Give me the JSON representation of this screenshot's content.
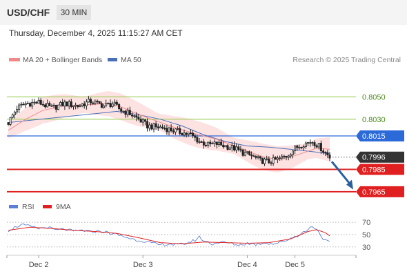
{
  "header": {
    "pair": "USD/CHF",
    "timeframe": "30 MIN"
  },
  "timestamp": "Thursday, December 4, 2025 11:15:27 AM CET",
  "colors": {
    "candle": "#222222",
    "bollinger_fill": "#fde2e2",
    "ma20": "#f08a8a",
    "ma50": "#4a6fb5",
    "green_level": "#8dc63f",
    "blue_level": "#2b6ad8",
    "red_level": "#e02020",
    "current_price": "#333333",
    "arrow": "#2a5fa0",
    "rsi": "#5b7fd4",
    "rsi_ma": "#e02020"
  },
  "chart_data": [
    {
      "type": "candlestick",
      "legend": [
        "MA 20 + Bollinger Bands",
        "MA 50"
      ],
      "legend_position": "top-left",
      "credit": "Research © 2025 Trading Central",
      "y_axis_range": [
        0.79575,
        0.8075
      ],
      "x_ticks": [
        "Dec 2",
        "Dec 3",
        "Dec 4",
        "Dec 5"
      ],
      "price_path": [
        [
          0,
          0.8027
        ],
        [
          4,
          0.804
        ],
        [
          8,
          0.8044
        ],
        [
          14,
          0.8045
        ],
        [
          20,
          0.804
        ],
        [
          26,
          0.8044
        ],
        [
          32,
          0.8042
        ],
        [
          38,
          0.8046
        ],
        [
          44,
          0.8042
        ],
        [
          48,
          0.8044
        ],
        [
          52,
          0.8038
        ],
        [
          56,
          0.8035
        ],
        [
          60,
          0.803
        ],
        [
          64,
          0.8024
        ],
        [
          68,
          0.8023
        ],
        [
          72,
          0.8022
        ],
        [
          76,
          0.802
        ],
        [
          80,
          0.8018
        ],
        [
          84,
          0.8016
        ],
        [
          88,
          0.801
        ],
        [
          92,
          0.8007
        ],
        [
          96,
          0.8008
        ],
        [
          100,
          0.8006
        ],
        [
          104,
          0.8004
        ],
        [
          108,
          0.8
        ],
        [
          112,
          0.7997
        ],
        [
          116,
          0.7993
        ],
        [
          120,
          0.7992
        ],
        [
          124,
          0.7994
        ],
        [
          128,
          0.7997
        ],
        [
          132,
          0.8004
        ],
        [
          136,
          0.8008
        ],
        [
          140,
          0.801
        ],
        [
          143,
          0.8006
        ],
        [
          145,
          0.8002
        ],
        [
          148,
          0.7996
        ]
      ],
      "ma50_path": [
        [
          0,
          0.8027
        ],
        [
          20,
          0.8031
        ],
        [
          40,
          0.8035
        ],
        [
          50,
          0.8037
        ],
        [
          60,
          0.8034
        ],
        [
          70,
          0.803
        ],
        [
          80,
          0.8024
        ],
        [
          90,
          0.8016
        ],
        [
          100,
          0.801
        ],
        [
          110,
          0.8006
        ],
        [
          120,
          0.8005
        ],
        [
          130,
          0.8003
        ],
        [
          140,
          0.8001
        ],
        [
          148,
          0.7999
        ]
      ],
      "ma20_path": [
        [
          0,
          0.802
        ],
        [
          8,
          0.803
        ],
        [
          16,
          0.8038
        ],
        [
          26,
          0.8042
        ],
        [
          36,
          0.8043
        ],
        [
          46,
          0.8044
        ],
        [
          52,
          0.8041
        ],
        [
          58,
          0.8036
        ],
        [
          66,
          0.803
        ],
        [
          76,
          0.8023
        ],
        [
          86,
          0.8017
        ],
        [
          96,
          0.8012
        ],
        [
          104,
          0.8006
        ],
        [
          112,
          0.8
        ],
        [
          118,
          0.7996
        ],
        [
          124,
          0.7994
        ],
        [
          130,
          0.7996
        ],
        [
          136,
          0.8
        ],
        [
          142,
          0.8004
        ],
        [
          148,
          0.8003
        ]
      ],
      "bollinger_width": 0.00095,
      "levels": [
        {
          "value": 0.805,
          "label": "0.8050",
          "style": "green"
        },
        {
          "value": 0.803,
          "label": "0.8030",
          "style": "green"
        },
        {
          "value": 0.8015,
          "label": "0.8015",
          "style": "blue"
        },
        {
          "value": 0.7996,
          "label": "0.7996",
          "style": "current"
        },
        {
          "value": 0.7985,
          "label": "0.7985",
          "style": "red"
        },
        {
          "value": 0.7965,
          "label": "0.7965",
          "style": "red"
        }
      ],
      "projection": {
        "from": 0.7992,
        "to": 0.7967
      }
    },
    {
      "type": "line",
      "legend": [
        "RSI",
        "9MA"
      ],
      "legend_position": "top-left",
      "y_axis_range": [
        22,
        78
      ],
      "y_ticks": [
        70,
        50,
        30
      ],
      "rsi_path": [
        [
          0,
          57
        ],
        [
          3,
          62
        ],
        [
          6,
          66
        ],
        [
          10,
          63
        ],
        [
          14,
          60
        ],
        [
          18,
          62
        ],
        [
          22,
          57
        ],
        [
          26,
          59
        ],
        [
          30,
          55
        ],
        [
          34,
          57
        ],
        [
          38,
          54
        ],
        [
          42,
          56
        ],
        [
          46,
          53
        ],
        [
          50,
          50
        ],
        [
          54,
          46
        ],
        [
          58,
          42
        ],
        [
          62,
          40
        ],
        [
          66,
          36
        ],
        [
          70,
          33
        ],
        [
          74,
          35
        ],
        [
          78,
          33
        ],
        [
          82,
          36
        ],
        [
          86,
          41
        ],
        [
          88,
          46
        ],
        [
          90,
          40
        ],
        [
          94,
          35
        ],
        [
          98,
          38
        ],
        [
          102,
          36
        ],
        [
          106,
          33
        ],
        [
          110,
          36
        ],
        [
          114,
          34
        ],
        [
          118,
          37
        ],
        [
          122,
          35
        ],
        [
          126,
          38
        ],
        [
          130,
          44
        ],
        [
          134,
          50
        ],
        [
          138,
          58
        ],
        [
          140,
          64
        ],
        [
          142,
          59
        ],
        [
          144,
          48
        ],
        [
          146,
          40
        ],
        [
          148,
          37
        ]
      ],
      "rsi_ma_path": [
        [
          0,
          57
        ],
        [
          10,
          62
        ],
        [
          20,
          60
        ],
        [
          30,
          57
        ],
        [
          40,
          55
        ],
        [
          50,
          52
        ],
        [
          60,
          45
        ],
        [
          70,
          37
        ],
        [
          80,
          35
        ],
        [
          90,
          38
        ],
        [
          100,
          37
        ],
        [
          110,
          36
        ],
        [
          120,
          37
        ],
        [
          130,
          43
        ],
        [
          138,
          55
        ],
        [
          142,
          58
        ],
        [
          146,
          53
        ],
        [
          148,
          48
        ]
      ]
    }
  ]
}
